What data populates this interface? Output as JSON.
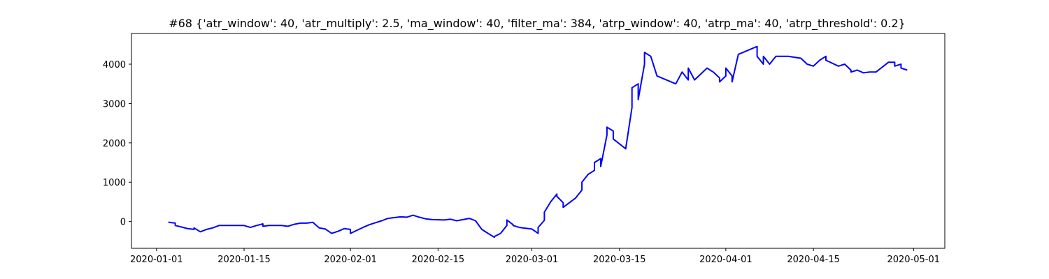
{
  "chart_data": {
    "type": "line",
    "title": "#68 {'atr_window': 40, 'atr_multiply': 2.5, 'ma_window': 40, 'filter_ma': 384, 'atrp_window': 40, 'atrp_ma': 40, 'atrp_threshold': 0.2}",
    "xlabel": "",
    "ylabel": "",
    "grid": false,
    "legend": "none",
    "line_color": "#0000ff",
    "x_ticks": [
      "2020-01-01",
      "2020-01-15",
      "2020-02-01",
      "2020-02-15",
      "2020-03-01",
      "2020-03-15",
      "2020-04-01",
      "2020-04-15",
      "2020-05-01"
    ],
    "y_ticks": [
      0,
      1000,
      2000,
      3000,
      4000
    ],
    "xlim": [
      "2019-12-28",
      "2020-05-06"
    ],
    "ylim": [
      -680,
      4780
    ],
    "series": [
      {
        "x": [
          "2020-01-03",
          "2020-01-03",
          "2020-01-04",
          "2020-01-04",
          "2020-01-05",
          "2020-01-06",
          "2020-01-07",
          "2020-01-07",
          "2020-01-08",
          "2020-01-09",
          "2020-01-10",
          "2020-01-11",
          "2020-01-15",
          "2020-01-16",
          "2020-01-17",
          "2020-01-18",
          "2020-01-18",
          "2020-01-19",
          "2020-01-21",
          "2020-01-22",
          "2020-01-23",
          "2020-01-24",
          "2020-01-25",
          "2020-01-26",
          "2020-01-27",
          "2020-01-28",
          "2020-01-29",
          "2020-01-30",
          "2020-01-31",
          "2020-02-01",
          "2020-02-01",
          "2020-02-03",
          "2020-02-04",
          "2020-02-05",
          "2020-02-06",
          "2020-02-07",
          "2020-02-08",
          "2020-02-09",
          "2020-02-10",
          "2020-02-11",
          "2020-02-12",
          "2020-02-13",
          "2020-02-14",
          "2020-02-16",
          "2020-02-17",
          "2020-02-18",
          "2020-02-20",
          "2020-02-21",
          "2020-02-22",
          "2020-02-23",
          "2020-02-24",
          "2020-02-24",
          "2020-02-25",
          "2020-02-26",
          "2020-02-26",
          "2020-02-27",
          "2020-02-27",
          "2020-02-28",
          "2020-03-01",
          "2020-03-02",
          "2020-03-02",
          "2020-03-03",
          "2020-03-03",
          "2020-03-04",
          "2020-03-05",
          "2020-03-05",
          "2020-03-06",
          "2020-03-06",
          "2020-03-08",
          "2020-03-09",
          "2020-03-09",
          "2020-03-10",
          "2020-03-11",
          "2020-03-11",
          "2020-03-12",
          "2020-03-12",
          "2020-03-13",
          "2020-03-13",
          "2020-03-14",
          "2020-03-14",
          "2020-03-16",
          "2020-03-17",
          "2020-03-17",
          "2020-03-18",
          "2020-03-18",
          "2020-03-19",
          "2020-03-19",
          "2020-03-20",
          "2020-03-21",
          "2020-03-24",
          "2020-03-25",
          "2020-03-26",
          "2020-03-26",
          "2020-03-27",
          "2020-03-28",
          "2020-03-29",
          "2020-03-30",
          "2020-03-31",
          "2020-03-31",
          "2020-04-01",
          "2020-04-01",
          "2020-04-02",
          "2020-04-02",
          "2020-04-03",
          "2020-04-06",
          "2020-04-06",
          "2020-04-07",
          "2020-04-07",
          "2020-04-08",
          "2020-04-09",
          "2020-04-11",
          "2020-04-13",
          "2020-04-14",
          "2020-04-15",
          "2020-04-16",
          "2020-04-17",
          "2020-04-17",
          "2020-04-19",
          "2020-04-20",
          "2020-04-21",
          "2020-04-21",
          "2020-04-22",
          "2020-04-23",
          "2020-04-24",
          "2020-04-25",
          "2020-04-27",
          "2020-04-28",
          "2020-04-28",
          "2020-04-29",
          "2020-04-29",
          "2020-04-30"
        ],
        "values": [
          0,
          -20,
          -40,
          -100,
          -140,
          -180,
          -200,
          -160,
          -260,
          -200,
          -160,
          -100,
          -100,
          -150,
          -100,
          -60,
          -120,
          -100,
          -100,
          -120,
          -70,
          -40,
          -40,
          -20,
          -160,
          -190,
          -300,
          -250,
          -180,
          -200,
          -300,
          -150,
          -80,
          -30,
          20,
          80,
          100,
          120,
          110,
          160,
          110,
          70,
          50,
          40,
          60,
          20,
          80,
          20,
          -200,
          -300,
          -400,
          -380,
          -300,
          -100,
          40,
          -80,
          -100,
          -150,
          -190,
          -300,
          -150,
          30,
          240,
          500,
          700,
          640,
          480,
          360,
          600,
          800,
          1000,
          1200,
          1300,
          1500,
          1600,
          1400,
          2200,
          2400,
          2300,
          2100,
          1850,
          2900,
          3400,
          3500,
          3100,
          4000,
          4300,
          4200,
          3700,
          3500,
          3800,
          3600,
          3900,
          3600,
          3750,
          3900,
          3800,
          3650,
          3550,
          3700,
          3900,
          3700,
          3550,
          4250,
          4450,
          4200,
          4000,
          4200,
          4000,
          4200,
          4200,
          4150,
          4000,
          3950,
          4100,
          4200,
          4100,
          3950,
          4000,
          3850,
          3800,
          3850,
          3780,
          3800,
          3800,
          4050,
          4050,
          3950,
          4000,
          3900,
          3850
        ]
      }
    ]
  }
}
